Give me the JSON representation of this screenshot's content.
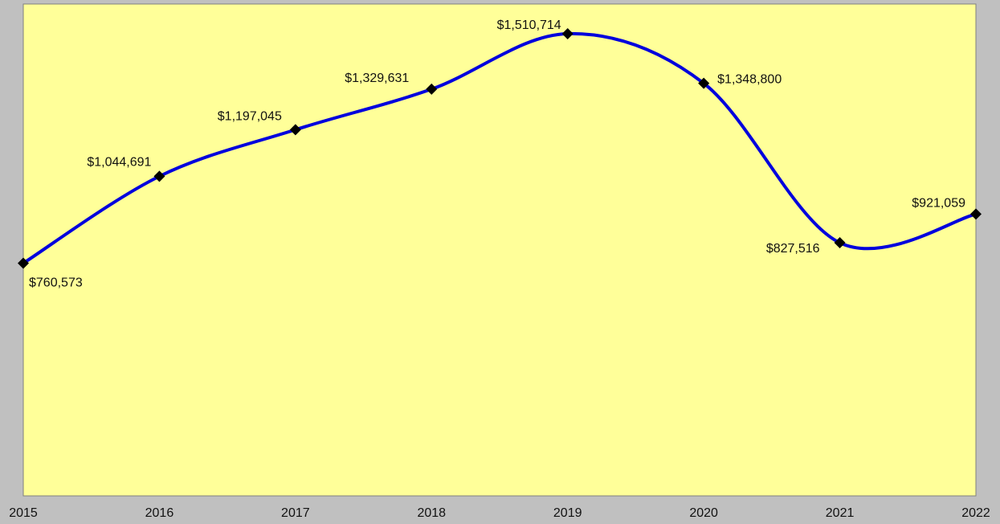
{
  "colors": {
    "background": "#c0c0c0",
    "plot_area": "#ffff99",
    "plot_border": "#808080",
    "series_line": "#0000dd",
    "marker": "#000000",
    "text": "#111111"
  },
  "chart_data": {
    "type": "line",
    "smoothed": true,
    "x": [
      "2015",
      "2016",
      "2017",
      "2018",
      "2019",
      "2020",
      "2021",
      "2022"
    ],
    "series": [
      {
        "values": [
          760573,
          1044691,
          1197045,
          1329631,
          1510714,
          1348800,
          827516,
          921059
        ],
        "labels": [
          "$760,573",
          "$1,044,691",
          "$1,197,045",
          "$1,329,631",
          "$1,510,714",
          "$1,348,800",
          "$827,516",
          "$921,059"
        ],
        "marker": "diamond"
      }
    ],
    "title": "",
    "xlabel": "",
    "ylabel": "",
    "ylim": [
      0,
      1600000
    ],
    "grid": false,
    "legend": "none"
  }
}
